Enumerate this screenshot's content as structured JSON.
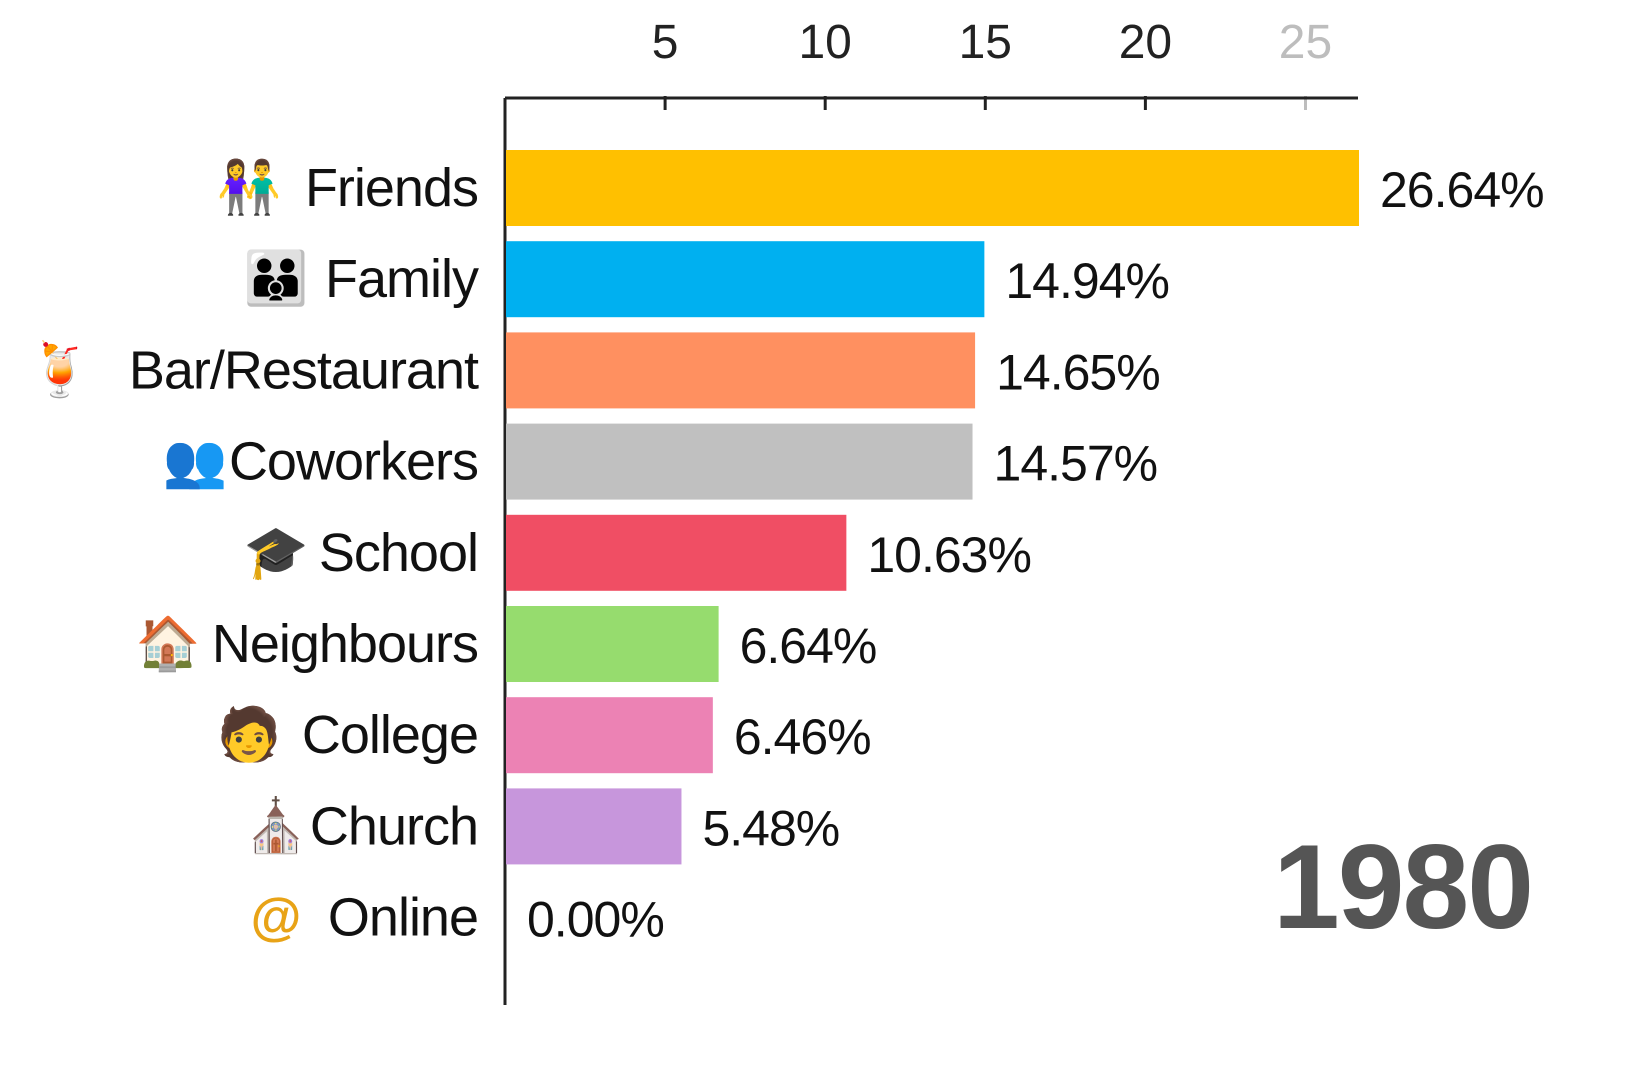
{
  "chart_data": {
    "type": "bar",
    "orientation": "horizontal",
    "categories": [
      "Friends",
      "Family",
      "Bar/Restaurant",
      "Coworkers",
      "School",
      "Neighbours",
      "College",
      "Church",
      "Online"
    ],
    "values": [
      26.64,
      14.94,
      14.65,
      14.57,
      10.63,
      6.64,
      6.46,
      5.48,
      0.0
    ],
    "value_labels": [
      "26.64%",
      "14.94%",
      "14.65%",
      "14.57%",
      "10.63%",
      "6.64%",
      "6.46%",
      "5.48%",
      "0.00%"
    ],
    "colors": [
      "#FFC000",
      "#00B0F0",
      "#FF9060",
      "#C0C0C0",
      "#F04E64",
      "#96DC6E",
      "#EC82B4",
      "#C796DC",
      "#FFFFFF"
    ],
    "icons": [
      "people-couple-icon",
      "family-icon",
      "cocktail-icon",
      "coworkers-icon",
      "graduation-cap-icon",
      "house-icon",
      "graduate-icon",
      "church-icon",
      "at-sign-icon"
    ],
    "xticks": [
      5,
      10,
      15,
      20,
      25
    ],
    "faded_ticks": [
      25
    ],
    "xlim": [
      0,
      26.64
    ],
    "axis_position": "top",
    "grid": false,
    "year": "1980"
  }
}
